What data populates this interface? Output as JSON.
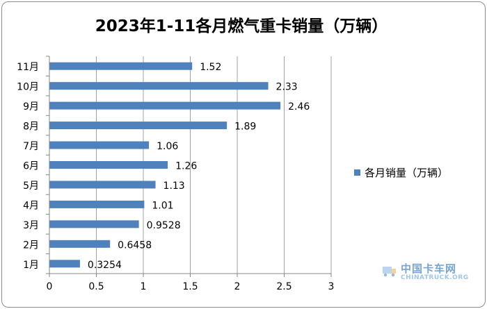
{
  "chart_data": {
    "type": "bar",
    "orientation": "horizontal",
    "title": "2023年1-11各月燃气重卡销量（万辆）",
    "categories": [
      "1月",
      "2月",
      "3月",
      "4月",
      "5月",
      "6月",
      "7月",
      "8月",
      "9月",
      "10月",
      "11月"
    ],
    "series": [
      {
        "name": "各月销量（万辆）",
        "values": [
          0.3254,
          0.6458,
          0.9528,
          1.01,
          1.13,
          1.26,
          1.06,
          1.89,
          2.46,
          2.33,
          1.52
        ],
        "labels": [
          "0.3254",
          "0.6458",
          "0.9528",
          "1.01",
          "1.13",
          "1.26",
          "1.06",
          "1.89",
          "2.46",
          "2.33",
          "1.52"
        ]
      }
    ],
    "xlim": [
      0,
      3
    ],
    "xticks": [
      "0",
      "0.5",
      "1",
      "1.5",
      "2",
      "2.5",
      "3"
    ],
    "grid": "vertical",
    "legend_position": "right",
    "colors": {
      "bar": "#4f81bd",
      "grid": "#a0a0a0",
      "axis": "#868686"
    }
  },
  "watermark": {
    "cn": "中国卡车网",
    "en": "CHINATRUCK.ORG"
  }
}
